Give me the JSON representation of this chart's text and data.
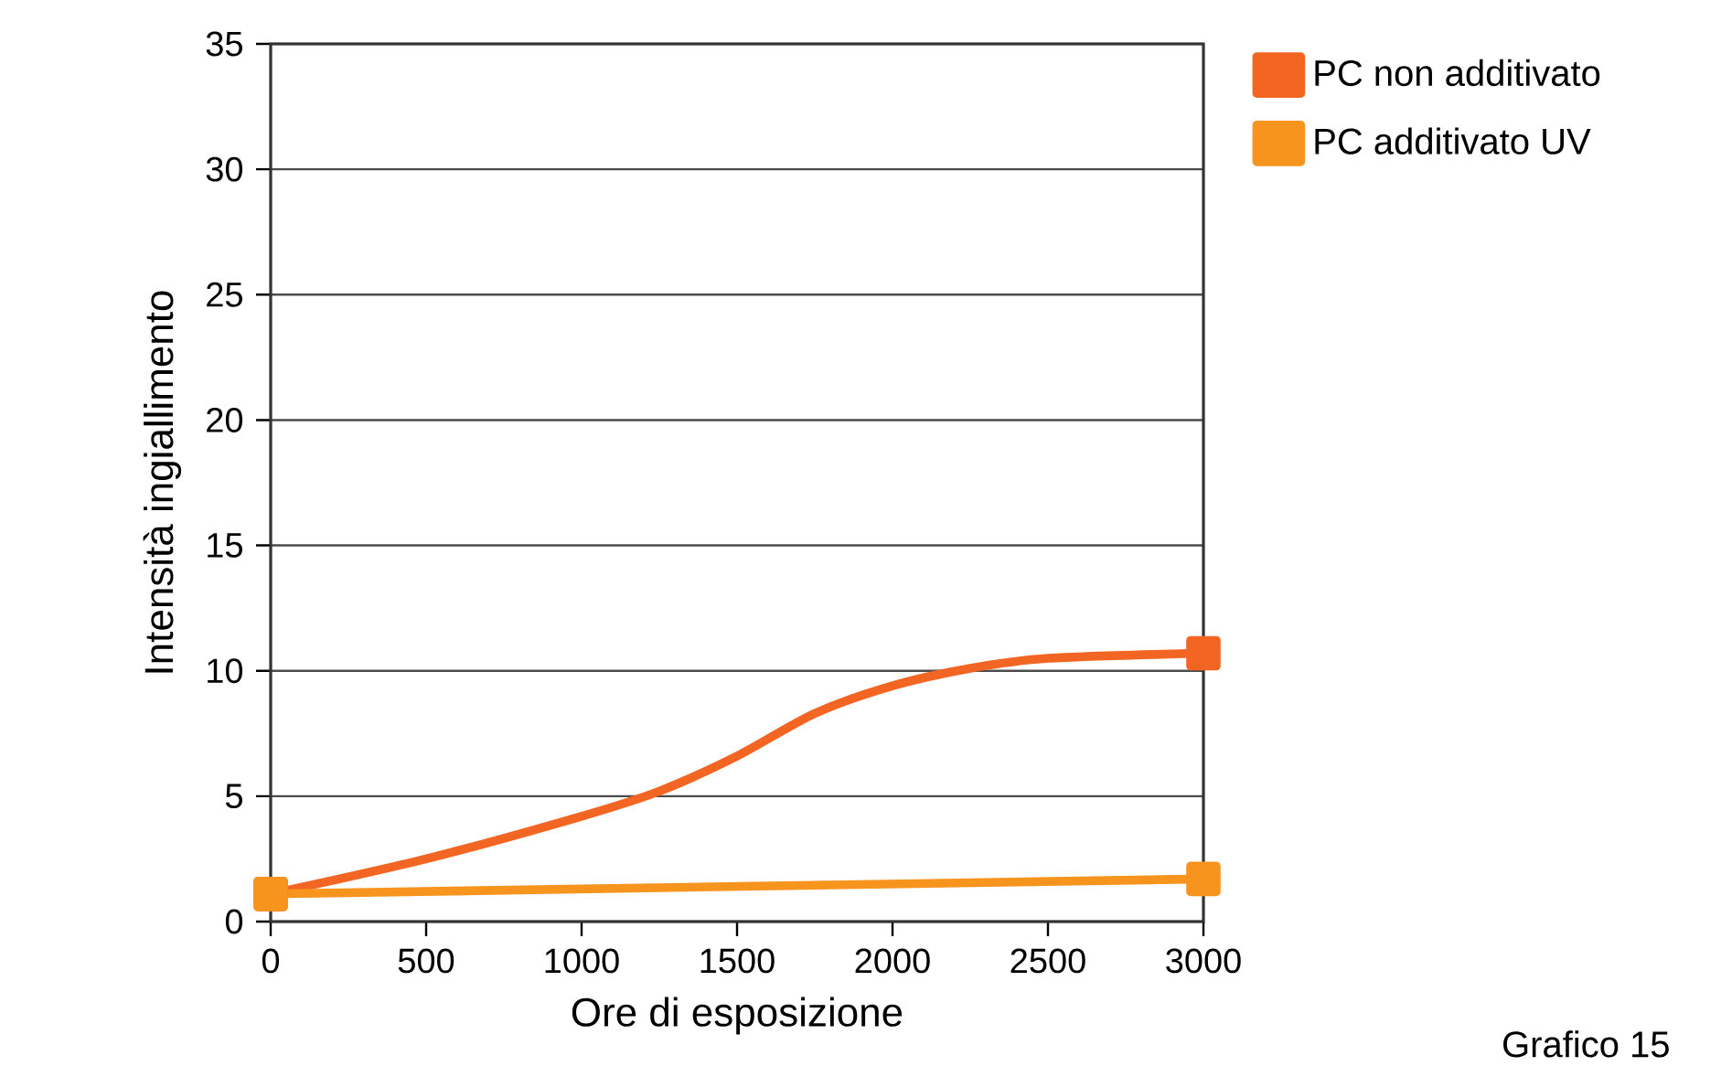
{
  "chart_data": {
    "type": "line",
    "xlabel": "Ore di esposizione",
    "ylabel": "Intensità ingiallimento",
    "annotations": [
      "Grafico 15"
    ],
    "xlim": [
      0,
      3000
    ],
    "xticks": [
      0,
      500,
      1000,
      1500,
      2000,
      2500,
      3000
    ],
    "ylim": [
      0,
      35
    ],
    "yticks": [
      0,
      5,
      10,
      15,
      20,
      25,
      30,
      35
    ],
    "grid": "y",
    "legend": "top right",
    "series": [
      {
        "name": "PC non additivato",
        "color": "#f26522",
        "x": [
          0,
          500,
          1000,
          1250,
          1500,
          1750,
          2000,
          2250,
          2500,
          3000
        ],
        "values": [
          1.1,
          2.5,
          4.2,
          5.2,
          6.6,
          8.3,
          9.4,
          10.1,
          10.5,
          10.7
        ]
      },
      {
        "name": "PC additivato UV",
        "color": "#f7941d",
        "marker": "square",
        "x": [
          0,
          3000
        ],
        "values": [
          1.1,
          1.7
        ]
      }
    ]
  }
}
